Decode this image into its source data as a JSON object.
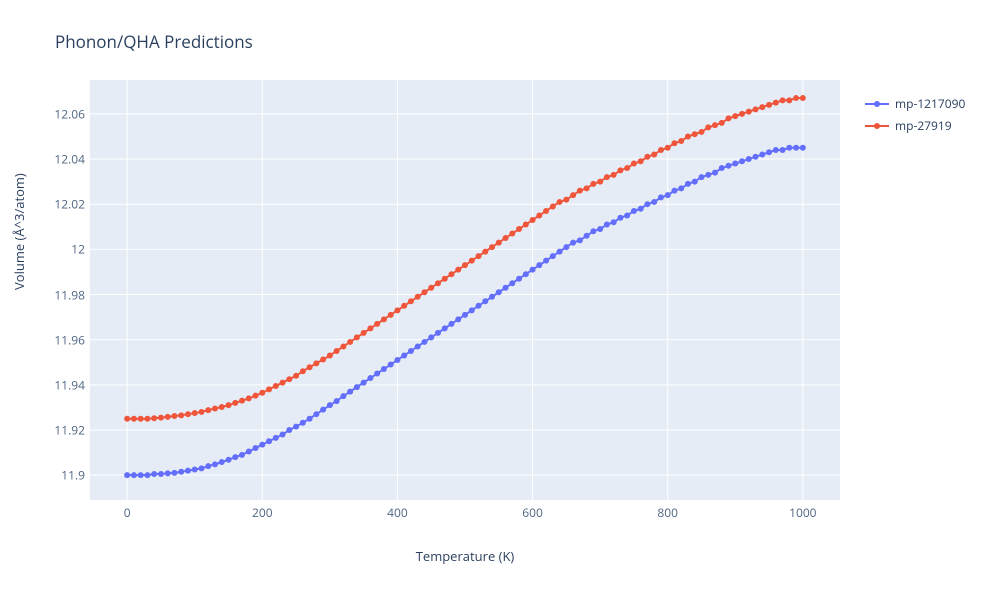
{
  "chart": {
    "type": "scatter+line",
    "title": "Phonon/QHA Predictions",
    "xlabel": "Temperature (K)",
    "ylabel": "Volume (Å^3/atom)",
    "background_color": "#ffffff",
    "plot_background_color": "#e5ecf6",
    "grid_color": "#ffffff",
    "text_color": "#2a3f5f",
    "tick_color": "#506784",
    "title_fontsize": 17,
    "label_fontsize": 13,
    "tick_fontsize": 12,
    "xlim": [
      -55,
      1055
    ],
    "ylim": [
      11.889,
      12.075
    ],
    "xticks": [
      0,
      200,
      400,
      600,
      800,
      1000
    ],
    "yticks": [
      11.9,
      11.92,
      11.94,
      11.96,
      11.98,
      12,
      12.02,
      12.04,
      12.06
    ],
    "marker_radius": 3,
    "line_width": 2,
    "series": [
      {
        "name": "mp-1217090",
        "color": "#636efa",
        "x": [
          0,
          10,
          20,
          30,
          40,
          50,
          60,
          70,
          80,
          90,
          100,
          110,
          120,
          130,
          140,
          150,
          160,
          170,
          180,
          190,
          200,
          210,
          220,
          230,
          240,
          250,
          260,
          270,
          280,
          290,
          300,
          310,
          320,
          330,
          340,
          350,
          360,
          370,
          380,
          390,
          400,
          410,
          420,
          430,
          440,
          450,
          460,
          470,
          480,
          490,
          500,
          510,
          520,
          530,
          540,
          550,
          560,
          570,
          580,
          590,
          600,
          610,
          620,
          630,
          640,
          650,
          660,
          670,
          680,
          690,
          700,
          710,
          720,
          730,
          740,
          750,
          760,
          770,
          780,
          790,
          800,
          810,
          820,
          830,
          840,
          850,
          860,
          870,
          880,
          890,
          900,
          910,
          920,
          930,
          940,
          950,
          960,
          970,
          980,
          990,
          1000
        ],
        "y": [
          11.9,
          11.9,
          11.9,
          11.9,
          11.9005,
          11.9005,
          11.9008,
          11.901,
          11.9015,
          11.902,
          11.9025,
          11.903,
          11.904,
          11.9048,
          11.9058,
          11.9068,
          11.908,
          11.909,
          11.9105,
          11.912,
          11.9135,
          11.915,
          11.9165,
          11.918,
          11.92,
          11.9215,
          11.9232,
          11.925,
          11.927,
          11.929,
          11.931,
          11.9328,
          11.935,
          11.937,
          11.939,
          11.941,
          11.943,
          11.945,
          11.947,
          11.949,
          11.951,
          11.953,
          11.955,
          11.957,
          11.959,
          11.961,
          11.963,
          11.965,
          11.967,
          11.969,
          11.971,
          11.973,
          11.975,
          11.977,
          11.979,
          11.981,
          11.983,
          11.985,
          11.987,
          11.989,
          11.991,
          11.993,
          11.995,
          11.997,
          11.999,
          12.001,
          12.003,
          12.004,
          12.006,
          12.008,
          12.009,
          12.011,
          12.012,
          12.014,
          12.015,
          12.017,
          12.018,
          12.02,
          12.021,
          12.023,
          12.024,
          12.026,
          12.027,
          12.029,
          12.03,
          12.032,
          12.033,
          12.034,
          12.036,
          12.037,
          12.038,
          12.039,
          12.04,
          12.041,
          12.042,
          12.043,
          12.044,
          12.044,
          12.045,
          12.045,
          12.045
        ]
      },
      {
        "name": "mp-27919",
        "color": "#ef553b",
        "x": [
          0,
          10,
          20,
          30,
          40,
          50,
          60,
          70,
          80,
          90,
          100,
          110,
          120,
          130,
          140,
          150,
          160,
          170,
          180,
          190,
          200,
          210,
          220,
          230,
          240,
          250,
          260,
          270,
          280,
          290,
          300,
          310,
          320,
          330,
          340,
          350,
          360,
          370,
          380,
          390,
          400,
          410,
          420,
          430,
          440,
          450,
          460,
          470,
          480,
          490,
          500,
          510,
          520,
          530,
          540,
          550,
          560,
          570,
          580,
          590,
          600,
          610,
          620,
          630,
          640,
          650,
          660,
          670,
          680,
          690,
          700,
          710,
          720,
          730,
          740,
          750,
          760,
          770,
          780,
          790,
          800,
          810,
          820,
          830,
          840,
          850,
          860,
          870,
          880,
          890,
          900,
          910,
          920,
          930,
          940,
          950,
          960,
          970,
          980,
          990,
          1000
        ],
        "y": [
          11.925,
          11.925,
          11.925,
          11.925,
          11.9252,
          11.9255,
          11.9258,
          11.9262,
          11.9265,
          11.927,
          11.9275,
          11.928,
          11.9288,
          11.9295,
          11.9302,
          11.931,
          11.932,
          11.933,
          11.934,
          11.9352,
          11.9365,
          11.938,
          11.9395,
          11.941,
          11.9425,
          11.944,
          11.946,
          11.9478,
          11.9495,
          11.9512,
          11.953,
          11.955,
          11.957,
          11.959,
          11.961,
          11.963,
          11.965,
          11.967,
          11.969,
          11.971,
          11.973,
          11.975,
          11.977,
          11.979,
          11.981,
          11.983,
          11.985,
          11.987,
          11.989,
          11.991,
          11.993,
          11.995,
          11.997,
          11.999,
          12.001,
          12.003,
          12.005,
          12.007,
          12.009,
          12.011,
          12.013,
          12.015,
          12.017,
          12.019,
          12.021,
          12.022,
          12.024,
          12.026,
          12.027,
          12.029,
          12.03,
          12.032,
          12.033,
          12.035,
          12.036,
          12.038,
          12.039,
          12.041,
          12.042,
          12.044,
          12.045,
          12.047,
          12.048,
          12.05,
          12.051,
          12.052,
          12.054,
          12.055,
          12.056,
          12.058,
          12.059,
          12.06,
          12.061,
          12.062,
          12.063,
          12.064,
          12.065,
          12.066,
          12.066,
          12.067,
          12.067
        ]
      }
    ]
  }
}
